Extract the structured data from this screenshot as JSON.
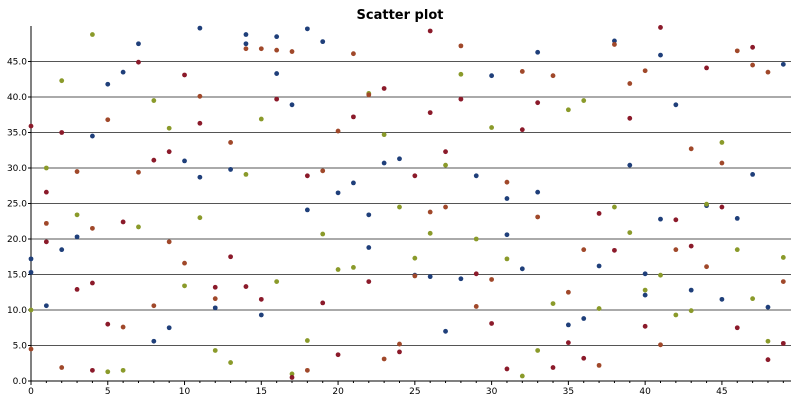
{
  "chart_data": {
    "type": "scatter",
    "title": "Scatter plot",
    "xlabel": "",
    "ylabel": "",
    "xlim": [
      0,
      49.5
    ],
    "ylim": [
      0,
      50
    ],
    "x_ticks": [
      0,
      5,
      10,
      15,
      20,
      25,
      30,
      35,
      40,
      45
    ],
    "y_ticks": [
      0,
      5,
      10,
      15,
      20,
      25,
      30,
      35,
      40,
      45
    ],
    "y_tick_labels": [
      "0.0",
      "5.0",
      "10.0",
      "15.0",
      "20.0",
      "25.0",
      "30.0",
      "35.0",
      "40.0",
      "45.0"
    ],
    "grid": "horizontal",
    "legend": "none",
    "colors": {
      "navy": "#1f3f7a",
      "olive": "#8a9a2a",
      "brown": "#a0482a",
      "crimson": "#8b1a2a"
    },
    "series": [
      {
        "color_key": "navy",
        "x": [
          0,
          0,
          1,
          2,
          3,
          4,
          5,
          6,
          7,
          8,
          9,
          10,
          11,
          11,
          12,
          13,
          14,
          14,
          15,
          16,
          16,
          17,
          18,
          18,
          19,
          20,
          21,
          22,
          22,
          23,
          24,
          25,
          26,
          27,
          28,
          29,
          30,
          31,
          31,
          32,
          33,
          33,
          35,
          36,
          37,
          38,
          39,
          40,
          40,
          41,
          41,
          42,
          43,
          44,
          45,
          46,
          47,
          48,
          49
        ],
        "y": [
          17.2,
          15.3,
          10.6,
          18.5,
          20.3,
          34.5,
          41.8,
          43.5,
          47.5,
          5.6,
          7.5,
          31.0,
          28.7,
          49.7,
          10.3,
          29.8,
          47.5,
          48.8,
          9.3,
          43.3,
          48.5,
          38.9,
          49.6,
          24.1,
          47.8,
          26.5,
          27.9,
          23.4,
          18.8,
          30.7,
          31.3,
          14.9,
          14.7,
          7.0,
          14.4,
          28.9,
          43.0,
          20.6,
          25.7,
          15.8,
          46.3,
          26.6,
          7.9,
          8.8,
          16.2,
          47.9,
          30.4,
          15.1,
          12.1,
          22.8,
          45.9,
          38.9,
          12.8,
          24.7,
          11.5,
          22.9,
          29.1,
          10.4,
          44.6
        ]
      },
      {
        "color_key": "olive",
        "x": [
          0,
          1,
          2,
          3,
          4,
          5,
          6,
          7,
          8,
          9,
          10,
          11,
          12,
          13,
          14,
          15,
          16,
          17,
          18,
          19,
          20,
          21,
          22,
          23,
          24,
          25,
          26,
          27,
          28,
          29,
          30,
          31,
          32,
          33,
          34,
          35,
          36,
          37,
          38,
          39,
          40,
          41,
          42,
          43,
          44,
          45,
          46,
          47,
          48,
          49
        ],
        "y": [
          10.0,
          30.0,
          42.3,
          23.4,
          48.8,
          1.3,
          1.5,
          21.7,
          39.5,
          35.6,
          13.4,
          23.0,
          4.3,
          2.6,
          29.1,
          36.9,
          14.0,
          1.0,
          5.7,
          20.7,
          15.7,
          16.0,
          40.5,
          34.7,
          24.5,
          17.3,
          20.8,
          30.4,
          43.2,
          20.0,
          35.7,
          17.2,
          0.7,
          4.3,
          10.9,
          38.2,
          39.5,
          10.2,
          24.5,
          20.9,
          12.8,
          14.9,
          9.3,
          9.9,
          24.9,
          33.6,
          18.5,
          11.6,
          5.6,
          17.4
        ]
      },
      {
        "color_key": "brown",
        "x": [
          0,
          1,
          2,
          3,
          4,
          5,
          6,
          7,
          8,
          9,
          10,
          11,
          12,
          13,
          14,
          15,
          16,
          17,
          18,
          19,
          20,
          21,
          22,
          23,
          24,
          25,
          26,
          27,
          28,
          29,
          30,
          31,
          32,
          33,
          34,
          35,
          36,
          37,
          38,
          39,
          40,
          41,
          42,
          43,
          44,
          45,
          46,
          47,
          48,
          49
        ],
        "y": [
          4.5,
          22.2,
          1.9,
          29.5,
          21.5,
          36.8,
          7.6,
          29.4,
          10.6,
          19.6,
          16.6,
          40.1,
          11.6,
          33.6,
          46.8,
          46.8,
          46.6,
          46.4,
          1.5,
          29.6,
          35.2,
          46.1,
          40.3,
          3.1,
          5.2,
          14.8,
          23.8,
          24.5,
          47.2,
          10.5,
          14.3,
          28.0,
          43.6,
          23.1,
          43.0,
          12.5,
          18.5,
          2.2,
          47.4,
          41.9,
          43.7,
          5.1,
          18.5,
          32.7,
          16.1,
          30.7,
          46.5,
          44.5,
          43.5,
          14.0
        ]
      },
      {
        "color_key": "crimson",
        "x": [
          0,
          1,
          1,
          2,
          3,
          4,
          4,
          5,
          6,
          7,
          8,
          9,
          10,
          11,
          12,
          13,
          14,
          15,
          16,
          17,
          18,
          19,
          20,
          21,
          22,
          23,
          24,
          25,
          26,
          26,
          27,
          28,
          29,
          30,
          31,
          32,
          33,
          34,
          35,
          36,
          37,
          38,
          39,
          40,
          41,
          42,
          43,
          44,
          45,
          46,
          47,
          48,
          49
        ],
        "y": [
          35.9,
          19.6,
          26.6,
          35.0,
          12.9,
          13.8,
          1.5,
          8.0,
          22.4,
          44.9,
          31.1,
          32.3,
          43.1,
          36.3,
          13.2,
          17.5,
          13.3,
          11.5,
          39.7,
          0.5,
          28.9,
          11.0,
          3.7,
          37.2,
          14.0,
          41.2,
          4.1,
          28.9,
          37.8,
          49.3,
          32.3,
          39.7,
          15.1,
          8.1,
          1.7,
          35.4,
          39.2,
          1.9,
          5.4,
          3.2,
          23.6,
          18.4,
          37.0,
          7.7,
          49.8,
          22.7,
          19.0,
          44.1,
          24.5,
          7.5,
          47.0,
          3.0,
          5.3
        ]
      }
    ]
  }
}
